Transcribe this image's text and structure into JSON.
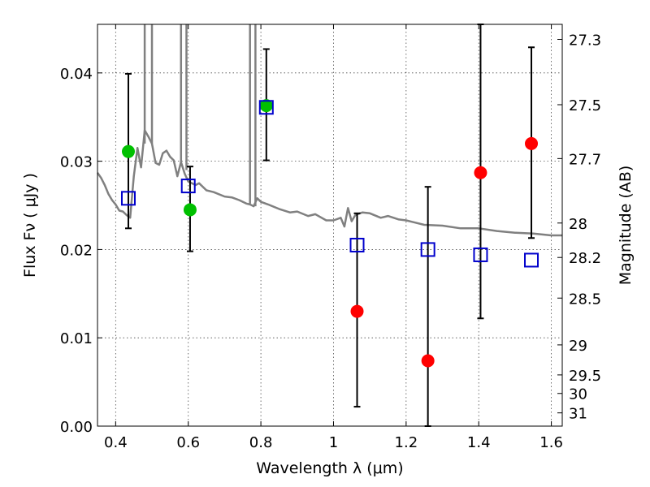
{
  "chart_data": {
    "type": "scatter",
    "xlabel": "Wavelength  λ (μm)",
    "ylabel": "Flux  Fν  ( μJy )",
    "y2label": "Magnitude (AB)",
    "xlim": [
      0.35,
      1.63
    ],
    "ylim": [
      0.0,
      0.0455
    ],
    "grid": true,
    "x_ticks": [
      0.4,
      0.6,
      0.8,
      1.0,
      1.2,
      1.4,
      1.6
    ],
    "x_tick_labels": [
      "0.4",
      "0.6",
      "0.8",
      "1",
      "1.2",
      "1.4",
      "1.6"
    ],
    "y_ticks": [
      0.0,
      0.01,
      0.02,
      0.03,
      0.04
    ],
    "y_tick_labels": [
      "0.00",
      "0.01",
      "0.02",
      "0.03",
      "0.04"
    ],
    "y2_ticks": [
      {
        "label": "27.3",
        "flux": 0.0438
      },
      {
        "label": "27.5",
        "flux": 0.0364
      },
      {
        "label": "27.7",
        "flux": 0.0303
      },
      {
        "label": "28",
        "flux": 0.023
      },
      {
        "label": "28.2",
        "flux": 0.0191
      },
      {
        "label": "28.5",
        "flux": 0.0145
      },
      {
        "label": "29",
        "flux": 0.0092
      },
      {
        "label": "29.5",
        "flux": 0.0058
      },
      {
        "label": "30",
        "flux": 0.0037
      },
      {
        "label": "31",
        "flux": 0.0015
      }
    ],
    "series": [
      {
        "name": "model-spectrum",
        "kind": "line",
        "color": "#808080",
        "x": [
          0.35,
          0.36,
          0.37,
          0.38,
          0.39,
          0.4,
          0.41,
          0.42,
          0.43,
          0.44,
          0.45,
          0.46,
          0.47,
          0.48,
          0.49,
          0.5,
          0.51,
          0.52,
          0.53,
          0.54,
          0.55,
          0.56,
          0.57,
          0.58,
          0.59,
          0.6,
          0.61,
          0.62,
          0.63,
          0.65,
          0.67,
          0.7,
          0.72,
          0.74,
          0.76,
          0.77,
          0.78,
          0.79,
          0.8,
          0.82,
          0.85,
          0.88,
          0.9,
          0.93,
          0.95,
          0.98,
          1.0,
          1.02,
          1.03,
          1.04,
          1.05,
          1.06,
          1.08,
          1.1,
          1.13,
          1.15,
          1.18,
          1.2,
          1.25,
          1.3,
          1.35,
          1.4,
          1.45,
          1.5,
          1.55,
          1.6,
          1.63
        ],
        "y": [
          0.0287,
          0.0281,
          0.0273,
          0.0263,
          0.0256,
          0.0251,
          0.0244,
          0.0243,
          0.0239,
          0.0236,
          0.0283,
          0.0315,
          0.0293,
          0.0335,
          0.0328,
          0.032,
          0.0298,
          0.0296,
          0.0309,
          0.0312,
          0.0305,
          0.0301,
          0.0283,
          0.0299,
          0.0286,
          0.0277,
          0.0275,
          0.0273,
          0.0275,
          0.0267,
          0.0265,
          0.026,
          0.0259,
          0.0256,
          0.0252,
          0.0251,
          0.0249,
          0.0258,
          0.0254,
          0.0251,
          0.0246,
          0.0242,
          0.0243,
          0.0238,
          0.024,
          0.0233,
          0.0233,
          0.0236,
          0.0226,
          0.0247,
          0.0232,
          0.0239,
          0.0242,
          0.0241,
          0.0236,
          0.0238,
          0.0234,
          0.0233,
          0.0228,
          0.0227,
          0.0224,
          0.0224,
          0.0221,
          0.0219,
          0.0218,
          0.0216,
          0.0216
        ]
      },
      {
        "name": "model-spectrum-spikes",
        "kind": "spikes",
        "color": "#808080",
        "x": [
          0.48,
          0.5,
          0.58,
          0.595,
          0.77,
          0.785
        ],
        "y_base": [
          0.032,
          0.032,
          0.0295,
          0.029,
          0.0252,
          0.0249
        ],
        "y_top": [
          0.0455,
          0.0455,
          0.0455,
          0.0455,
          0.0455,
          0.0455
        ]
      },
      {
        "name": "green-detections",
        "kind": "points",
        "color": "#00c000",
        "x": [
          0.435,
          0.605,
          0.815
        ],
        "y": [
          0.0311,
          0.0245,
          0.0363
        ]
      },
      {
        "name": "red-detections",
        "kind": "points",
        "color": "#ff0000",
        "x": [
          1.065,
          1.26,
          1.405,
          1.545
        ],
        "y": [
          0.013,
          0.0074,
          0.0287,
          0.032
        ]
      },
      {
        "name": "model-photometry",
        "kind": "squares",
        "color": "#0000cc",
        "x": [
          0.435,
          0.6,
          0.815,
          1.065,
          1.26,
          1.405,
          1.545
        ],
        "y": [
          0.0258,
          0.0272,
          0.0361,
          0.0205,
          0.02,
          0.0194,
          0.0188
        ]
      },
      {
        "name": "error-bars",
        "kind": "errorbars",
        "color": "#000000",
        "x": [
          0.435,
          0.605,
          0.815,
          1.065,
          1.26,
          1.405,
          1.545
        ],
        "low": [
          0.0224,
          0.0198,
          0.0301,
          0.0022,
          0.0,
          0.0122,
          0.0213
        ],
        "high": [
          0.0399,
          0.0294,
          0.0427,
          0.0241,
          0.0271,
          0.0455,
          0.0429
        ]
      }
    ]
  }
}
